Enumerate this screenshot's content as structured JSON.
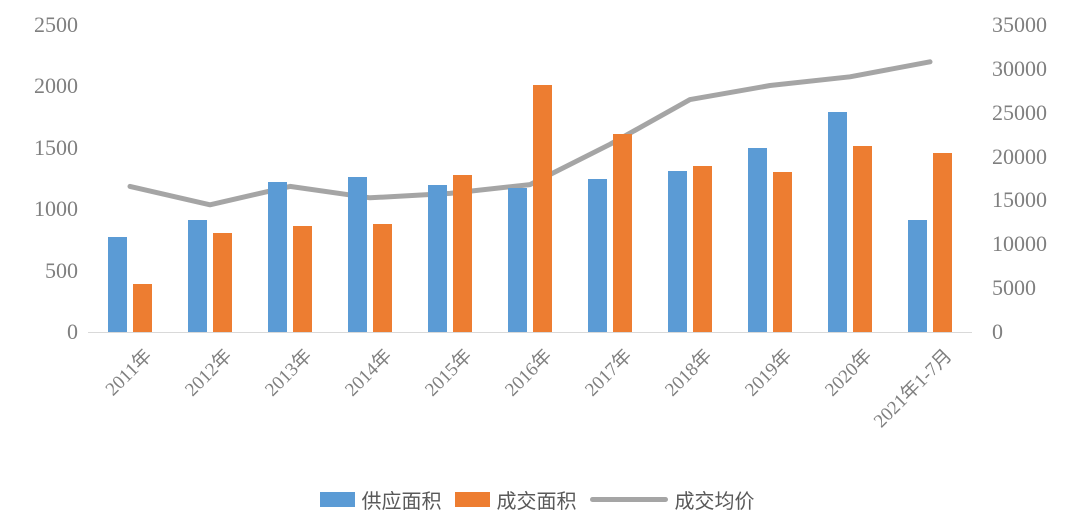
{
  "chart_data": {
    "type": "bar",
    "subtype": "combo-bar-line-dual-axis",
    "title": "",
    "categories": [
      "2011年",
      "2012年",
      "2013年",
      "2014年",
      "2015年",
      "2016年",
      "2017年",
      "2018年",
      "2019年",
      "2020年",
      "2021年1-7月"
    ],
    "series": [
      {
        "name": "供应面积",
        "type": "bar",
        "axis": "left",
        "color": "#5B9BD5",
        "values": [
          770,
          915,
          1225,
          1260,
          1200,
          1170,
          1245,
          1315,
          1500,
          1795,
          910
        ]
      },
      {
        "name": "成交面积",
        "type": "bar",
        "axis": "left",
        "color": "#ED7D31",
        "values": [
          390,
          810,
          865,
          880,
          1280,
          2010,
          1615,
          1355,
          1300,
          1515,
          1455
        ]
      },
      {
        "name": "成交均价",
        "type": "line",
        "axis": "right",
        "color": "#A5A5A5",
        "values": [
          16600,
          14500,
          16600,
          15300,
          15800,
          16800,
          21400,
          26500,
          28100,
          29100,
          30800
        ]
      }
    ],
    "left_axis": {
      "min": 0,
      "max": 2500,
      "ticks": [
        "2500",
        "2000",
        "1500",
        "1000",
        "500",
        "0"
      ]
    },
    "right_axis": {
      "min": 0,
      "max": 35000,
      "ticks": [
        "35000",
        "30000",
        "25000",
        "20000",
        "15000",
        "10000",
        "5000",
        "0"
      ]
    },
    "grid": false,
    "legend_position": "bottom",
    "xlabel": "",
    "ylabel": ""
  },
  "legend": {
    "items": [
      {
        "label": "供应面积",
        "color": "#5B9BD5",
        "shape": "rect"
      },
      {
        "label": "成交面积",
        "color": "#ED7D31",
        "shape": "rect"
      },
      {
        "label": "成交均价",
        "color": "#A5A5A5",
        "shape": "line"
      }
    ]
  },
  "colors": {
    "axis_text": "#7f7f7f",
    "legend_text": "#595959",
    "axis_line": "#d9d9d9",
    "background": "#ffffff"
  }
}
